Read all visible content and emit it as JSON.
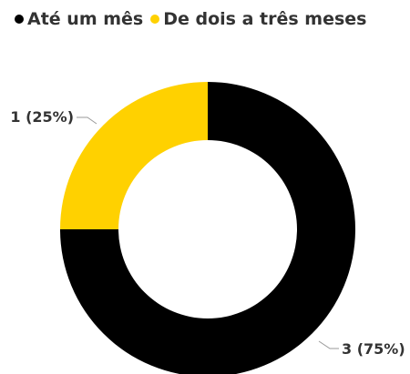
{
  "chart_data": {
    "type": "pie",
    "donut": true,
    "categories": [
      "Até um mês",
      "De dois a três meses"
    ],
    "values": [
      3,
      1
    ],
    "percentages": [
      75,
      25
    ],
    "data_labels": [
      "3 (75%)",
      "1 (25%)"
    ],
    "colors": [
      "#000000",
      "#FFD100"
    ],
    "legend_position": "top-left"
  }
}
